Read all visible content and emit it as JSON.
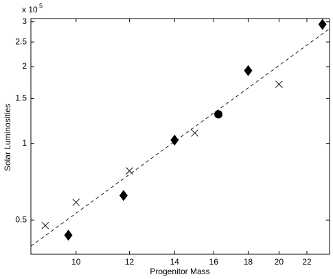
{
  "chart_data": {
    "type": "scatter",
    "xlabel": "Progenitor Mass",
    "ylabel": "Solar Luminosities",
    "y_offset_base": "x 10",
    "y_offset_exponent": "5",
    "xscale": "log",
    "yscale": "log",
    "xlim": [
      8.57,
      23.77
    ],
    "ylim": [
      0.367,
      3.09
    ],
    "xticks": [
      10,
      12,
      14,
      16,
      18,
      20,
      22
    ],
    "yticks": [
      0.5,
      1,
      1.5,
      2,
      2.5,
      3
    ],
    "series": [
      {
        "marker": "x",
        "color": "#000000",
        "x": [
          9,
          10,
          12,
          15,
          20
        ],
        "values": [
          0.476,
          0.587,
          0.78,
          1.098,
          1.705
        ]
      },
      {
        "marker": "diamond",
        "color": "#000000",
        "x": [
          9.74,
          11.76,
          14,
          18,
          23.2
        ],
        "values": [
          0.436,
          0.624,
          1.03,
          1.93,
          2.93
        ]
      },
      {
        "marker": "circle",
        "color": "#000000",
        "x": [
          16.26
        ],
        "values": [
          1.3
        ]
      },
      {
        "marker": "dashed-line",
        "color": "#000000",
        "x": [
          8.57,
          23.77
        ],
        "values": [
          0.395,
          2.82
        ]
      }
    ]
  }
}
